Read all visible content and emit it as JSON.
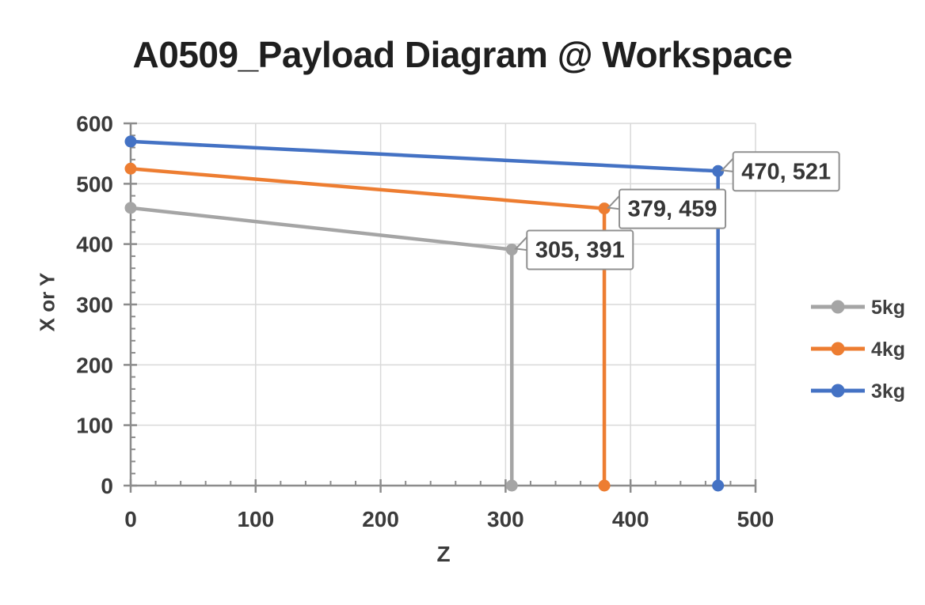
{
  "chart_data": {
    "type": "line",
    "title": "A0509_Payload Diagram @ Workspace",
    "xlabel": "Z",
    "ylabel": "X or Y",
    "xlim": [
      0,
      500
    ],
    "ylim": [
      0,
      600
    ],
    "x_major_ticks": [
      0,
      100,
      200,
      300,
      400,
      500
    ],
    "y_major_ticks": [
      0,
      100,
      200,
      300,
      400,
      500,
      600
    ],
    "minor_tick_step": 20,
    "grid": true,
    "legend_position": "right",
    "legend_entries": [
      "5kg",
      "4kg",
      "3kg"
    ],
    "series": [
      {
        "name": "5kg",
        "color": "#A5A5A5",
        "points": [
          [
            0,
            460
          ],
          [
            305,
            391
          ],
          [
            305,
            0
          ]
        ],
        "callout": {
          "text": "305, 391",
          "point_index": 1
        }
      },
      {
        "name": "4kg",
        "color": "#ED7D31",
        "points": [
          [
            0,
            525
          ],
          [
            379,
            459
          ],
          [
            379,
            0
          ]
        ],
        "callout": {
          "text": "379, 459",
          "point_index": 1
        }
      },
      {
        "name": "3kg",
        "color": "#4472C4",
        "points": [
          [
            0,
            570
          ],
          [
            470,
            521
          ],
          [
            470,
            0
          ]
        ],
        "callout": {
          "text": "470, 521",
          "point_index": 1
        }
      }
    ],
    "colors": {
      "axis_line": "#8C8C8C",
      "gridline": "#D9D9D9",
      "tick_label": "#3b3b3b",
      "callout_border": "#909090",
      "callout_fill": "#FFFFFF",
      "callout_text": "#363636",
      "legend_text": "#404040",
      "title_text": "#1f1f1f",
      "background": "#FFFFFF"
    }
  }
}
